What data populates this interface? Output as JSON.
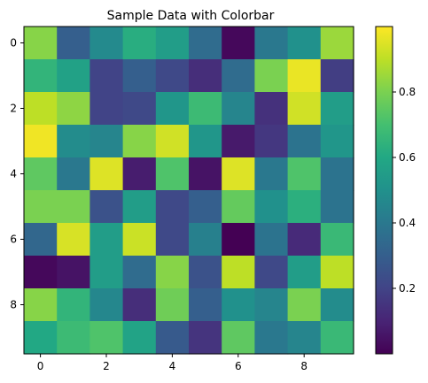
{
  "chart_data": {
    "type": "heatmap",
    "title": "Sample Data with Colorbar",
    "xlabel": "",
    "ylabel": "",
    "colormap": "viridis",
    "x_ticks": [
      0,
      2,
      4,
      6,
      8
    ],
    "y_ticks": [
      0,
      2,
      4,
      6,
      8
    ],
    "xlim": [
      -0.5,
      9.5
    ],
    "ylim": [
      9.5,
      -0.5
    ],
    "color_range": [
      0.0,
      1.0
    ],
    "colorbar": {
      "ticks": [
        0.2,
        0.4,
        0.6,
        0.8
      ],
      "tick_labels": [
        "0.2",
        "0.4",
        "0.6",
        "0.8"
      ],
      "placement": "right"
    },
    "values": [
      [
        0.82,
        0.3,
        0.47,
        0.62,
        0.55,
        0.35,
        0.02,
        0.4,
        0.5,
        0.85
      ],
      [
        0.65,
        0.57,
        0.2,
        0.3,
        0.22,
        0.13,
        0.35,
        0.8,
        0.97,
        0.18
      ],
      [
        0.9,
        0.83,
        0.2,
        0.22,
        0.52,
        0.68,
        0.45,
        0.14,
        0.93,
        0.55
      ],
      [
        0.98,
        0.48,
        0.45,
        0.82,
        0.93,
        0.52,
        0.07,
        0.16,
        0.38,
        0.52
      ],
      [
        0.75,
        0.4,
        0.95,
        0.08,
        0.72,
        0.05,
        0.95,
        0.4,
        0.72,
        0.38
      ],
      [
        0.8,
        0.8,
        0.25,
        0.55,
        0.22,
        0.3,
        0.76,
        0.5,
        0.63,
        0.38
      ],
      [
        0.33,
        0.94,
        0.55,
        0.92,
        0.22,
        0.43,
        0.0,
        0.38,
        0.12,
        0.67
      ],
      [
        0.02,
        0.05,
        0.55,
        0.35,
        0.82,
        0.25,
        0.9,
        0.22,
        0.55,
        0.9
      ],
      [
        0.82,
        0.65,
        0.46,
        0.13,
        0.78,
        0.3,
        0.5,
        0.45,
        0.8,
        0.48
      ],
      [
        0.6,
        0.68,
        0.72,
        0.58,
        0.28,
        0.15,
        0.75,
        0.4,
        0.45,
        0.67
      ]
    ]
  }
}
